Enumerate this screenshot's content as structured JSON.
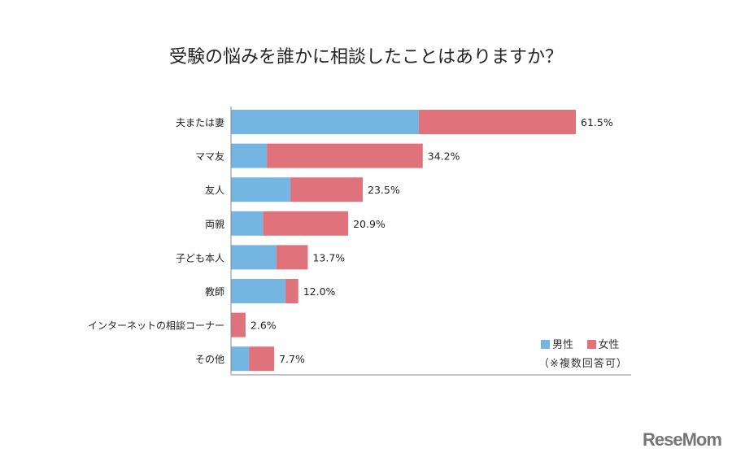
{
  "chart_data": {
    "type": "bar",
    "orientation": "horizontal",
    "stacked": true,
    "title": "受験の悩みを誰かに相談したことはありますか？",
    "categories": [
      "夫または妻",
      "ママ友",
      "友人",
      "両親",
      "子ども本人",
      "教師",
      "インターネットの相談コーナー",
      "その他"
    ],
    "series": [
      {
        "name": "男性",
        "color": "#74b5e2",
        "values": [
          33.5,
          6.4,
          10.6,
          5.7,
          8.1,
          9.7,
          0.0,
          3.2
        ]
      },
      {
        "name": "女性",
        "color": "#e0727c",
        "values": [
          28.0,
          27.8,
          12.9,
          15.2,
          5.6,
          2.3,
          2.6,
          4.5
        ]
      }
    ],
    "totals": [
      "61.5%",
      "34.2%",
      "23.5%",
      "20.9%",
      "13.7%",
      "12.0%",
      "2.6%",
      "7.7%"
    ],
    "xlim": [
      0,
      71.4
    ],
    "grid": false,
    "legend_position": "bottom-right",
    "note": "（※複数回答可）"
  },
  "logo": "ReseMom"
}
